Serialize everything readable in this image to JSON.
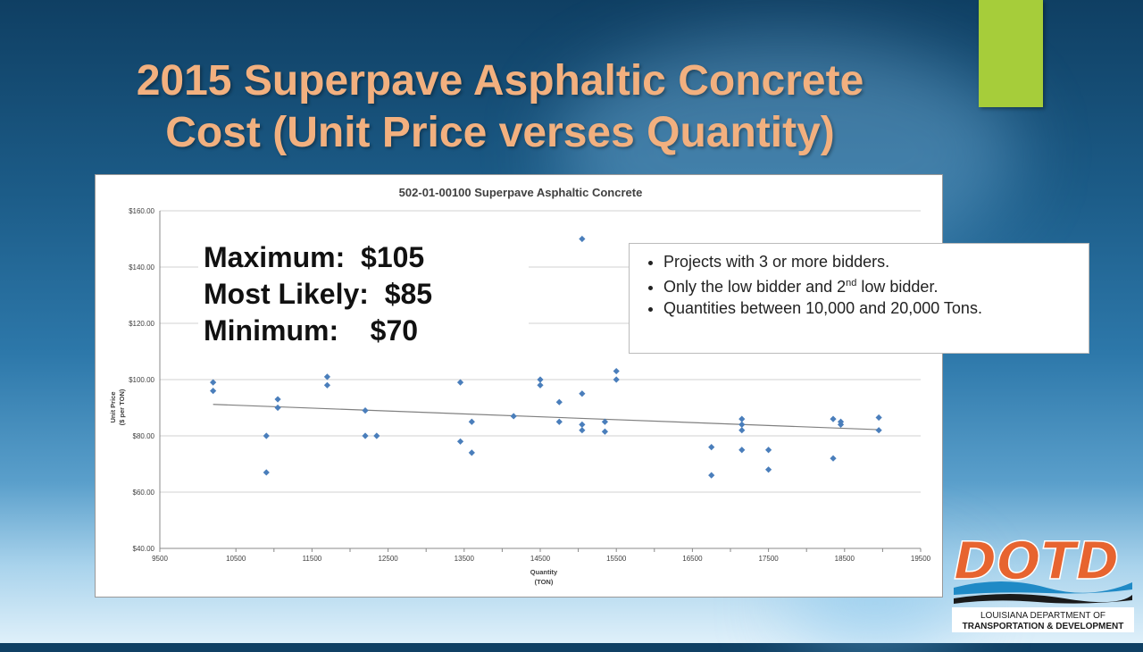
{
  "slide": {
    "title_line1": "2015 Superpave Asphaltic Concrete",
    "title_line2": "Cost (Unit Price verses Quantity)",
    "accent_color": "#a6cd3a",
    "title_color": "#f2b07f"
  },
  "stats": {
    "max_label": "Maximum:  $105",
    "likely_label": "Most Likely:  $85",
    "min_label": "Minimum:    $70"
  },
  "notes": {
    "item1": "Projects with 3 or more bidders.",
    "item2_pre": "Only the low bidder and 2",
    "item2_sup": "nd",
    "item2_post": " low bidder.",
    "item3": "Quantities between 10,000 and 20,000 Tons."
  },
  "logo": {
    "wordmark": "DOTD",
    "line1": "LOUISIANA DEPARTMENT OF",
    "line2": "TRANSPORTATION & DEVELOPMENT",
    "colors": {
      "orange": "#e7642f",
      "blue": "#1f8ac6",
      "dark": "#1a1a1a"
    }
  },
  "chart_data": {
    "type": "scatter",
    "title": "502-01-00100 Superpave Asphaltic Concrete",
    "xlabel_line1": "Quantity",
    "xlabel_line2": "(TON)",
    "ylabel_line1": "Unit Price",
    "ylabel_line2": "($ per TON)",
    "xlim": [
      9500,
      19500
    ],
    "ylim": [
      40,
      160
    ],
    "x_ticks": [
      9500,
      10500,
      11000,
      11500,
      12000,
      12500,
      13000,
      13500,
      14000,
      14500,
      15000,
      15500,
      16000,
      16500,
      17000,
      17500,
      18000,
      18500,
      19000,
      19500
    ],
    "x_tick_labels": [
      "9500",
      "10500",
      "11500",
      "12500",
      "13500",
      "14500",
      "15500",
      "16500",
      "17500",
      "18500",
      "19500"
    ],
    "y_ticks": [
      40,
      60,
      80,
      100,
      120,
      140,
      160
    ],
    "y_tick_labels": [
      "$40.00",
      "$60.00",
      "$80.00",
      "$100.00",
      "$120.00",
      "$140.00",
      "$160.00"
    ],
    "grid": true,
    "marker_color": "#4a7ebb",
    "trendline": {
      "type": "linear",
      "x": [
        10200,
        18950
      ],
      "y": [
        91.2,
        82.2
      ],
      "color": "#808080"
    },
    "points": [
      {
        "x": 10200,
        "y": 99
      },
      {
        "x": 10200,
        "y": 96
      },
      {
        "x": 10900,
        "y": 80
      },
      {
        "x": 10900,
        "y": 67
      },
      {
        "x": 11050,
        "y": 93
      },
      {
        "x": 11050,
        "y": 90
      },
      {
        "x": 11700,
        "y": 101
      },
      {
        "x": 11700,
        "y": 98
      },
      {
        "x": 12200,
        "y": 89
      },
      {
        "x": 12200,
        "y": 80
      },
      {
        "x": 12350,
        "y": 80
      },
      {
        "x": 13450,
        "y": 99
      },
      {
        "x": 13450,
        "y": 78
      },
      {
        "x": 13600,
        "y": 85
      },
      {
        "x": 13600,
        "y": 74
      },
      {
        "x": 14150,
        "y": 87
      },
      {
        "x": 14500,
        "y": 100
      },
      {
        "x": 14500,
        "y": 98
      },
      {
        "x": 14750,
        "y": 92
      },
      {
        "x": 14750,
        "y": 85
      },
      {
        "x": 15050,
        "y": 150
      },
      {
        "x": 15050,
        "y": 95
      },
      {
        "x": 15050,
        "y": 84
      },
      {
        "x": 15050,
        "y": 82
      },
      {
        "x": 15350,
        "y": 85
      },
      {
        "x": 15350,
        "y": 81.5
      },
      {
        "x": 15500,
        "y": 103
      },
      {
        "x": 15500,
        "y": 100
      },
      {
        "x": 16750,
        "y": 76
      },
      {
        "x": 16750,
        "y": 66
      },
      {
        "x": 17150,
        "y": 86
      },
      {
        "x": 17150,
        "y": 84
      },
      {
        "x": 17150,
        "y": 82
      },
      {
        "x": 17150,
        "y": 75
      },
      {
        "x": 17500,
        "y": 75
      },
      {
        "x": 17500,
        "y": 68
      },
      {
        "x": 18350,
        "y": 86
      },
      {
        "x": 18350,
        "y": 72
      },
      {
        "x": 18450,
        "y": 85
      },
      {
        "x": 18450,
        "y": 84
      },
      {
        "x": 18950,
        "y": 86.5
      },
      {
        "x": 18950,
        "y": 82
      }
    ]
  }
}
